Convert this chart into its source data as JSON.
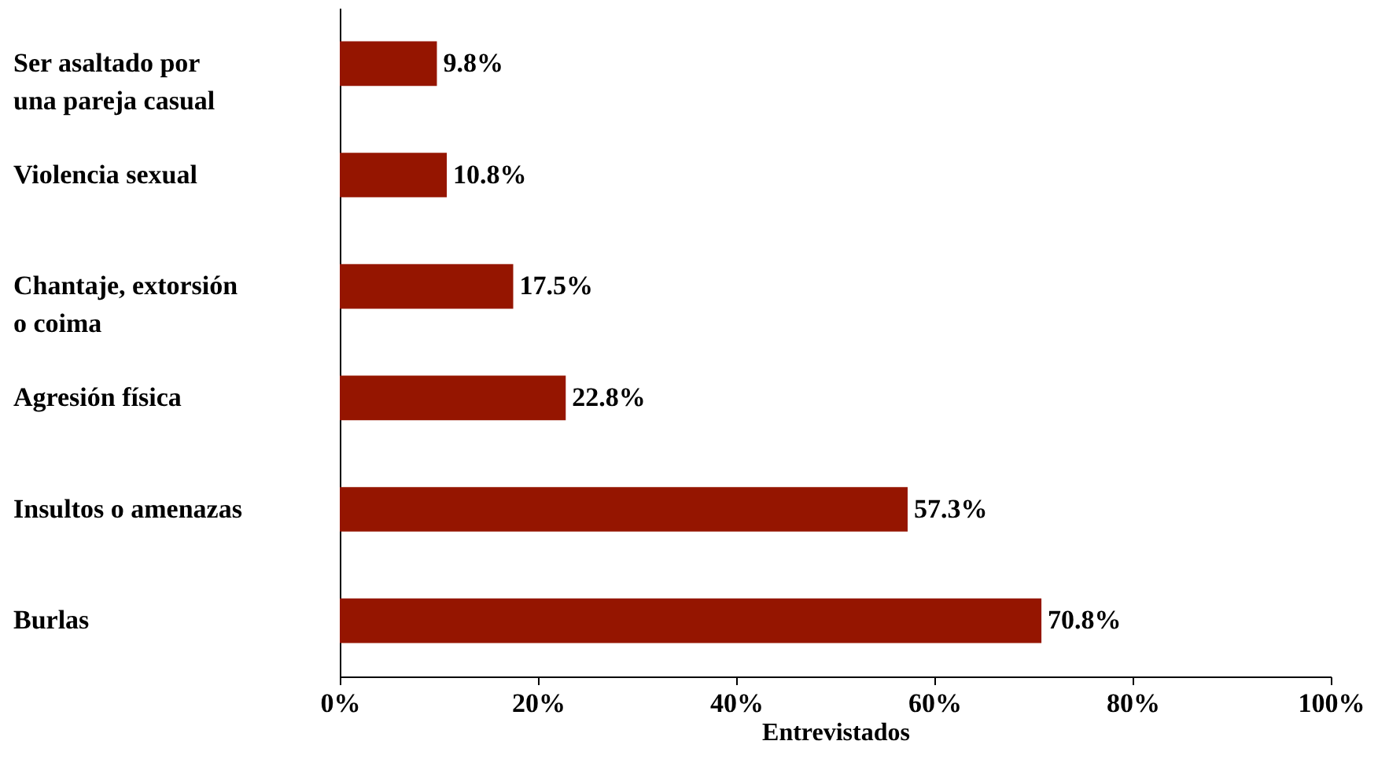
{
  "chart_data": {
    "type": "bar",
    "orientation": "horizontal",
    "xlabel": "Entrevistados",
    "categories": [
      "Ser asaltado por\nuna pareja casual",
      "Violencia sexual",
      "Chantaje, extorsión\no coima",
      "Agresión física",
      "Insultos o amenazas",
      "Burlas"
    ],
    "values": [
      9.8,
      10.8,
      17.5,
      22.8,
      57.3,
      70.8
    ],
    "value_labels": [
      "9.8%",
      "10.8%",
      "17.5%",
      "22.8%",
      "57.3%",
      "70.8%"
    ],
    "color": "#951500",
    "xlim": [
      0,
      100
    ],
    "xticks": [
      {
        "value": 0,
        "label": "0%"
      },
      {
        "value": 20,
        "label": "20%"
      },
      {
        "value": 40,
        "label": "40%"
      },
      {
        "value": 60,
        "label": "60%"
      },
      {
        "value": 80,
        "label": "80%"
      },
      {
        "value": 100,
        "label": "100%"
      }
    ],
    "grid": false
  }
}
